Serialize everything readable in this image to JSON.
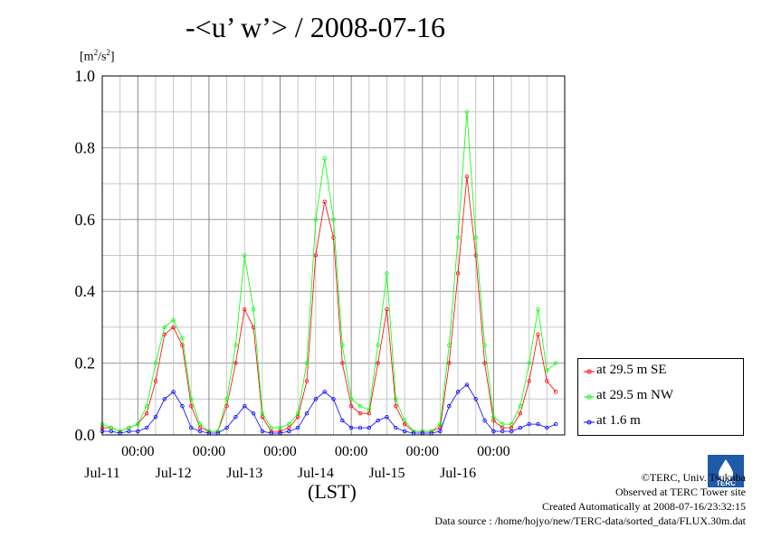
{
  "chart_data": {
    "type": "line",
    "title": "-<u’ w’> / 2008-07-16",
    "ylabel": "[m²/s²]",
    "xlabel": "(LST)",
    "ylim": [
      0.0,
      1.0
    ],
    "y_ticks": [
      "0.0",
      "0.2",
      "0.4",
      "0.6",
      "0.8",
      "1.0"
    ],
    "x_ticks": [
      {
        "time": "00:00",
        "date": "Jul-11"
      },
      {
        "time": "00:00",
        "date": "Jul-12"
      },
      {
        "time": "00:00",
        "date": "Jul-13"
      },
      {
        "time": "00:00",
        "date": "Jul-14"
      },
      {
        "time": "00:00",
        "date": "Jul-15"
      },
      {
        "time": "00:00",
        "date": "Jul-16"
      }
    ],
    "grid": true,
    "legend_position": "right",
    "x": [
      "07-10 12:00",
      "07-10 15:00",
      "07-10 18:00",
      "07-10 21:00",
      "07-11 00:00",
      "07-11 03:00",
      "07-11 06:00",
      "07-11 09:00",
      "07-11 12:00",
      "07-11 15:00",
      "07-11 18:00",
      "07-11 21:00",
      "07-12 00:00",
      "07-12 03:00",
      "07-12 06:00",
      "07-12 09:00",
      "07-12 12:00",
      "07-12 15:00",
      "07-12 18:00",
      "07-12 21:00",
      "07-13 00:00",
      "07-13 03:00",
      "07-13 06:00",
      "07-13 09:00",
      "07-13 12:00",
      "07-13 15:00",
      "07-13 18:00",
      "07-13 21:00",
      "07-14 00:00",
      "07-14 03:00",
      "07-14 06:00",
      "07-14 09:00",
      "07-14 12:00",
      "07-14 15:00",
      "07-14 18:00",
      "07-14 21:00",
      "07-15 00:00",
      "07-15 03:00",
      "07-15 06:00",
      "07-15 09:00",
      "07-15 12:00",
      "07-15 15:00",
      "07-15 18:00",
      "07-15 21:00",
      "07-16 00:00",
      "07-16 03:00",
      "07-16 06:00",
      "07-16 09:00",
      "07-16 12:00",
      "07-16 15:00",
      "07-16 18:00",
      "07-16 21:00"
    ],
    "series": [
      {
        "name": "at 29.5 m SE",
        "color": "#ff0000",
        "values": [
          0.02,
          0.02,
          0.01,
          0.02,
          0.03,
          0.06,
          0.15,
          0.28,
          0.3,
          0.25,
          0.08,
          0.02,
          0.01,
          0.01,
          0.08,
          0.2,
          0.35,
          0.3,
          0.05,
          0.01,
          0.01,
          0.02,
          0.05,
          0.15,
          0.5,
          0.65,
          0.55,
          0.2,
          0.08,
          0.06,
          0.06,
          0.2,
          0.35,
          0.08,
          0.03,
          0.01,
          0.01,
          0.01,
          0.02,
          0.2,
          0.45,
          0.72,
          0.5,
          0.2,
          0.04,
          0.02,
          0.02,
          0.06,
          0.15,
          0.28,
          0.15,
          0.12
        ]
      },
      {
        "name": "at 29.5 m NW",
        "color": "#00ff00",
        "values": [
          0.03,
          0.02,
          0.01,
          0.02,
          0.03,
          0.08,
          0.2,
          0.3,
          0.32,
          0.27,
          0.1,
          0.03,
          0.01,
          0.01,
          0.1,
          0.25,
          0.5,
          0.35,
          0.06,
          0.02,
          0.02,
          0.03,
          0.06,
          0.2,
          0.6,
          0.77,
          0.6,
          0.25,
          0.1,
          0.08,
          0.07,
          0.25,
          0.45,
          0.1,
          0.04,
          0.01,
          0.01,
          0.01,
          0.03,
          0.25,
          0.55,
          0.9,
          0.55,
          0.25,
          0.05,
          0.03,
          0.03,
          0.08,
          0.2,
          0.35,
          0.18,
          0.2
        ]
      },
      {
        "name": "at 1.6 m",
        "color": "#0000ff",
        "values": [
          0.01,
          0.01,
          0.005,
          0.01,
          0.01,
          0.02,
          0.05,
          0.1,
          0.12,
          0.08,
          0.02,
          0.01,
          0.005,
          0.005,
          0.02,
          0.05,
          0.08,
          0.06,
          0.01,
          0.005,
          0.005,
          0.01,
          0.02,
          0.06,
          0.1,
          0.12,
          0.1,
          0.04,
          0.02,
          0.02,
          0.02,
          0.04,
          0.05,
          0.02,
          0.01,
          0.005,
          0.005,
          0.005,
          0.01,
          0.08,
          0.12,
          0.14,
          0.1,
          0.04,
          0.01,
          0.01,
          0.01,
          0.02,
          0.03,
          0.03,
          0.02,
          0.03
        ]
      }
    ]
  },
  "credit": {
    "copyright": "©TERC, Univ. Tsukuba",
    "observed": "Observed at TERC Tower site",
    "created": "Created Automatically at 2008-07-16/23:32:15",
    "source": "Data source : /home/hojyo/new/TERC-data/sorted_data/FLUX.30m.dat"
  },
  "logo_text": "TERC"
}
